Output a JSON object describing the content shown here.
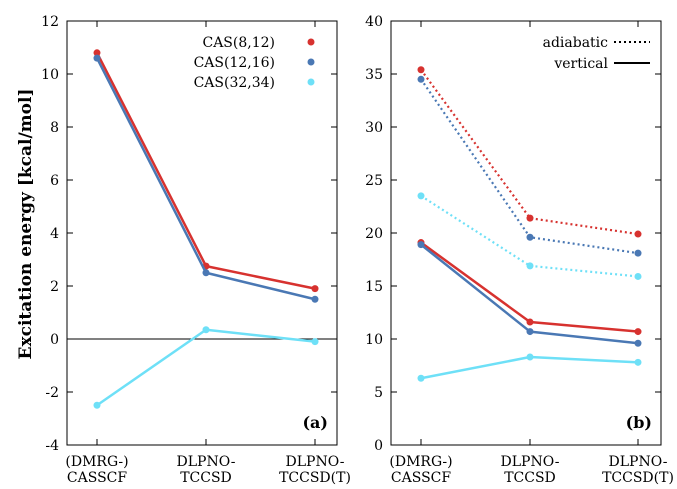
{
  "chart_data": [
    {
      "type": "line",
      "panel_label": "(a)",
      "ylabel": "Excitation energy [kcal/mol]",
      "ylim": [
        -4,
        12
      ],
      "yticks": [
        -4,
        -2,
        0,
        2,
        4,
        6,
        8,
        10,
        12
      ],
      "categories": [
        [
          "(DMRG-)",
          "CASSCF"
        ],
        [
          "DLPNO-",
          "TCCSD"
        ],
        [
          "DLPNO-",
          "TCCSD(T)"
        ]
      ],
      "zero_line": true,
      "legend_position": "top-right",
      "series": [
        {
          "name": "CAS(8,12)",
          "color": "#d7322f",
          "values": [
            10.8,
            2.75,
            1.9
          ]
        },
        {
          "name": "CAS(12,16)",
          "color": "#4a78b4",
          "values": [
            10.6,
            2.5,
            1.5
          ]
        },
        {
          "name": "CAS(32,34)",
          "color": "#6ee0f7",
          "values": [
            -2.5,
            0.35,
            -0.1
          ]
        }
      ]
    },
    {
      "type": "line",
      "panel_label": "(b)",
      "ylim": [
        0,
        40
      ],
      "yticks": [
        0,
        5,
        10,
        15,
        20,
        25,
        30,
        35,
        40
      ],
      "categories": [
        [
          "(DMRG-)",
          "CASSCF"
        ],
        [
          "DLPNO-",
          "TCCSD"
        ],
        [
          "DLPNO-",
          "TCCSD(T)"
        ]
      ],
      "legend_position": "top-right",
      "line_styles": [
        {
          "name": "adiabatic",
          "style": "dotted"
        },
        {
          "name": "vertical",
          "style": "solid"
        }
      ],
      "series": [
        {
          "group": "CAS(8,12)",
          "style": "dotted",
          "color": "#d7322f",
          "values": [
            35.4,
            21.4,
            19.9
          ]
        },
        {
          "group": "CAS(12,16)",
          "style": "dotted",
          "color": "#4a78b4",
          "values": [
            34.5,
            19.6,
            18.1
          ]
        },
        {
          "group": "CAS(32,34)",
          "style": "dotted",
          "color": "#6ee0f7",
          "values": [
            23.5,
            16.9,
            15.9
          ]
        },
        {
          "group": "CAS(8,12)",
          "style": "solid",
          "color": "#d7322f",
          "values": [
            19.1,
            11.6,
            10.7
          ]
        },
        {
          "group": "CAS(12,16)",
          "style": "solid",
          "color": "#4a78b4",
          "values": [
            18.9,
            10.7,
            9.6
          ]
        },
        {
          "group": "CAS(32,34)",
          "style": "solid",
          "color": "#6ee0f7",
          "values": [
            6.3,
            8.3,
            7.8
          ]
        }
      ]
    }
  ]
}
